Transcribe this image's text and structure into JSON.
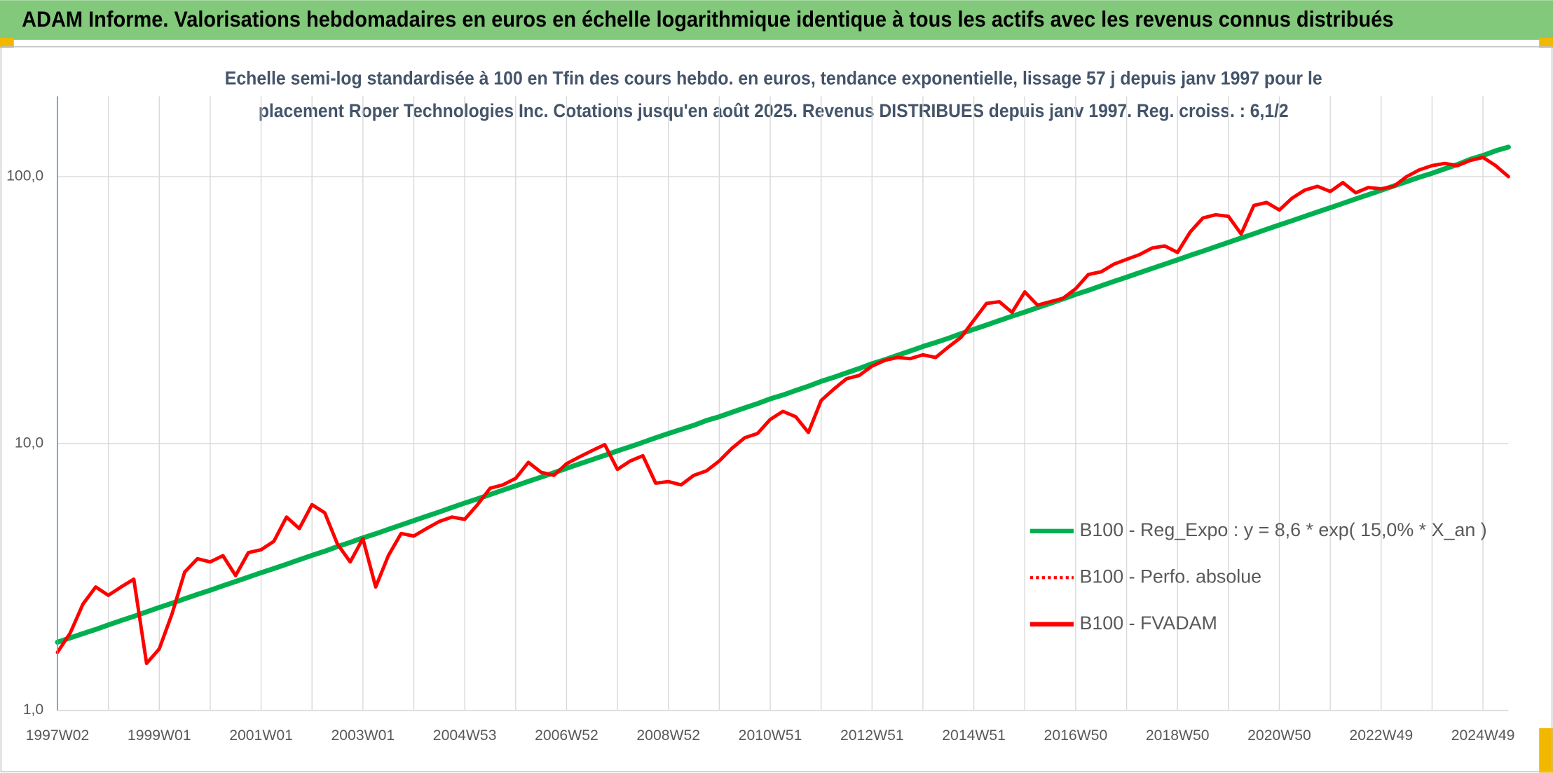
{
  "chart_data": {
    "type": "line",
    "title": "ADAM Informe. Valorisations hebdomadaires en euros en échelle logarithmique identique à tous les actifs avec les revenus connus distribués",
    "subtitle": [
      "Echelle semi-log standardisée à 100 en Tfin des cours hebdo. en euros, tendance exponentielle, lissage 57 j depuis janv 1997 pour le",
      "placement Roper Technologies Inc. Cotations jusqu'en août 2025. Revenus DISTRIBUES depuis janv 1997. Reg. croiss. : 6,1/2"
    ],
    "log_scale": true,
    "grid": true,
    "legend": "right",
    "ylim": [
      1,
      200
    ],
    "yticks": [
      {
        "value": 1,
        "label": "1,0"
      },
      {
        "value": 10,
        "label": "10,0"
      },
      {
        "value": 100,
        "label": "100,0"
      }
    ],
    "categories": [
      "1997W02",
      null,
      null,
      null,
      null,
      null,
      null,
      null,
      "1999W01",
      null,
      null,
      null,
      null,
      null,
      null,
      null,
      "2001W01",
      null,
      null,
      null,
      null,
      null,
      null,
      null,
      "2003W01",
      null,
      null,
      null,
      null,
      null,
      null,
      null,
      "2004W53",
      null,
      null,
      null,
      null,
      null,
      null,
      null,
      "2006W52",
      null,
      null,
      null,
      null,
      null,
      null,
      null,
      "2008W52",
      null,
      null,
      null,
      null,
      null,
      null,
      null,
      "2010W51",
      null,
      null,
      null,
      null,
      null,
      null,
      null,
      "2012W51",
      null,
      null,
      null,
      null,
      null,
      null,
      null,
      "2014W51",
      null,
      null,
      null,
      null,
      null,
      null,
      null,
      "2016W50",
      null,
      null,
      null,
      null,
      null,
      null,
      null,
      "2018W50",
      null,
      null,
      null,
      null,
      null,
      null,
      null,
      "2020W50",
      null,
      null,
      null,
      null,
      null,
      null,
      null,
      "2022W49",
      null,
      null,
      null,
      null,
      null,
      null,
      null,
      "2024W49",
      null,
      null
    ],
    "series": [
      {
        "name": "B100 - Reg_Expo : y = 8,6 * exp( 15,0% *  X_an )",
        "color": "#00b050",
        "style": "solid",
        "values": [
          1.8,
          1.87,
          1.94,
          2.01,
          2.09,
          2.17,
          2.25,
          2.34,
          2.43,
          2.52,
          2.62,
          2.72,
          2.82,
          2.93,
          3.04,
          3.16,
          3.28,
          3.4,
          3.53,
          3.67,
          3.81,
          3.95,
          4.11,
          4.26,
          4.43,
          4.59,
          4.77,
          4.95,
          5.14,
          5.34,
          5.54,
          5.76,
          5.98,
          6.2,
          6.44,
          6.69,
          6.94,
          7.21,
          7.48,
          7.77,
          8.07,
          8.38,
          8.7,
          9.03,
          9.38,
          9.73,
          10.1,
          10.5,
          10.9,
          11.3,
          11.7,
          12.2,
          12.6,
          13.1,
          13.6,
          14.1,
          14.7,
          15.2,
          15.8,
          16.4,
          17.1,
          17.7,
          18.4,
          19.1,
          19.9,
          20.6,
          21.4,
          22.2,
          23.1,
          23.9,
          24.8,
          25.8,
          26.8,
          27.8,
          28.9,
          30.0,
          31.1,
          32.3,
          33.5,
          34.8,
          36.2,
          37.5,
          39.0,
          40.5,
          42.0,
          43.6,
          45.3,
          47.0,
          48.8,
          50.7,
          52.6,
          54.6,
          56.7,
          58.9,
          61.1,
          63.5,
          65.9,
          68.4,
          71.0,
          73.7,
          76.5,
          79.4,
          82.5,
          85.6,
          88.9,
          92.3,
          95.8,
          99.5,
          103,
          107,
          111,
          116,
          120,
          125,
          129
        ]
      },
      {
        "name": "B100 - Perfo. absolue",
        "color": "#ff0000",
        "style": "dotted",
        "values": [
          1.65,
          1.95,
          2.5,
          2.9,
          2.7,
          2.9,
          3.1,
          1.5,
          1.7,
          2.3,
          3.3,
          3.7,
          3.6,
          3.8,
          3.2,
          3.9,
          4.0,
          4.3,
          5.3,
          4.8,
          5.9,
          5.5,
          4.2,
          3.6,
          4.4,
          2.9,
          3.8,
          4.6,
          4.5,
          4.8,
          5.1,
          5.3,
          5.2,
          5.9,
          6.8,
          7.0,
          7.4,
          8.5,
          7.8,
          7.6,
          8.4,
          8.9,
          9.4,
          9.9,
          8.0,
          8.6,
          9.0,
          7.1,
          7.2,
          7.0,
          7.6,
          7.9,
          8.6,
          9.6,
          10.5,
          10.9,
          12.3,
          13.2,
          12.6,
          11.0,
          14.5,
          16.0,
          17.5,
          18.0,
          19.5,
          20.5,
          21.0,
          20.8,
          21.5,
          21.0,
          23.0,
          25.0,
          29.0,
          33.5,
          34.0,
          31.0,
          37.0,
          33.0,
          34.0,
          35.0,
          38.0,
          43.0,
          44.0,
          47.0,
          49.0,
          51.0,
          54.0,
          55.0,
          52.0,
          62.0,
          70.0,
          72.0,
          71.0,
          61.0,
          78.0,
          80.0,
          75.0,
          83.0,
          89.0,
          92.0,
          88.0,
          95.0,
          87.0,
          91.0,
          90.0,
          92.0,
          100,
          106,
          110,
          112,
          110,
          115,
          118,
          110,
          100
        ]
      },
      {
        "name": "B100 - FVADAM",
        "color": "#ff0000",
        "style": "solid",
        "values": [
          1.65,
          1.95,
          2.5,
          2.9,
          2.7,
          2.9,
          3.1,
          1.5,
          1.7,
          2.3,
          3.3,
          3.7,
          3.6,
          3.8,
          3.2,
          3.9,
          4.0,
          4.3,
          5.3,
          4.8,
          5.9,
          5.5,
          4.2,
          3.6,
          4.4,
          2.9,
          3.8,
          4.6,
          4.5,
          4.8,
          5.1,
          5.3,
          5.2,
          5.9,
          6.8,
          7.0,
          7.4,
          8.5,
          7.8,
          7.6,
          8.4,
          8.9,
          9.4,
          9.9,
          8.0,
          8.6,
          9.0,
          7.1,
          7.2,
          7.0,
          7.6,
          7.9,
          8.6,
          9.6,
          10.5,
          10.9,
          12.3,
          13.2,
          12.6,
          11.0,
          14.5,
          16.0,
          17.5,
          18.0,
          19.5,
          20.5,
          21.0,
          20.8,
          21.5,
          21.0,
          23.0,
          25.0,
          29.0,
          33.5,
          34.0,
          31.0,
          37.0,
          33.0,
          34.0,
          35.0,
          38.0,
          43.0,
          44.0,
          47.0,
          49.0,
          51.0,
          54.0,
          55.0,
          52.0,
          62.0,
          70.0,
          72.0,
          71.0,
          61.0,
          78.0,
          80.0,
          75.0,
          83.0,
          89.0,
          92.0,
          88.0,
          95.0,
          87.0,
          91.0,
          90.0,
          92.0,
          100,
          106,
          110,
          112,
          110,
          115,
          118,
          110,
          100
        ]
      }
    ]
  }
}
